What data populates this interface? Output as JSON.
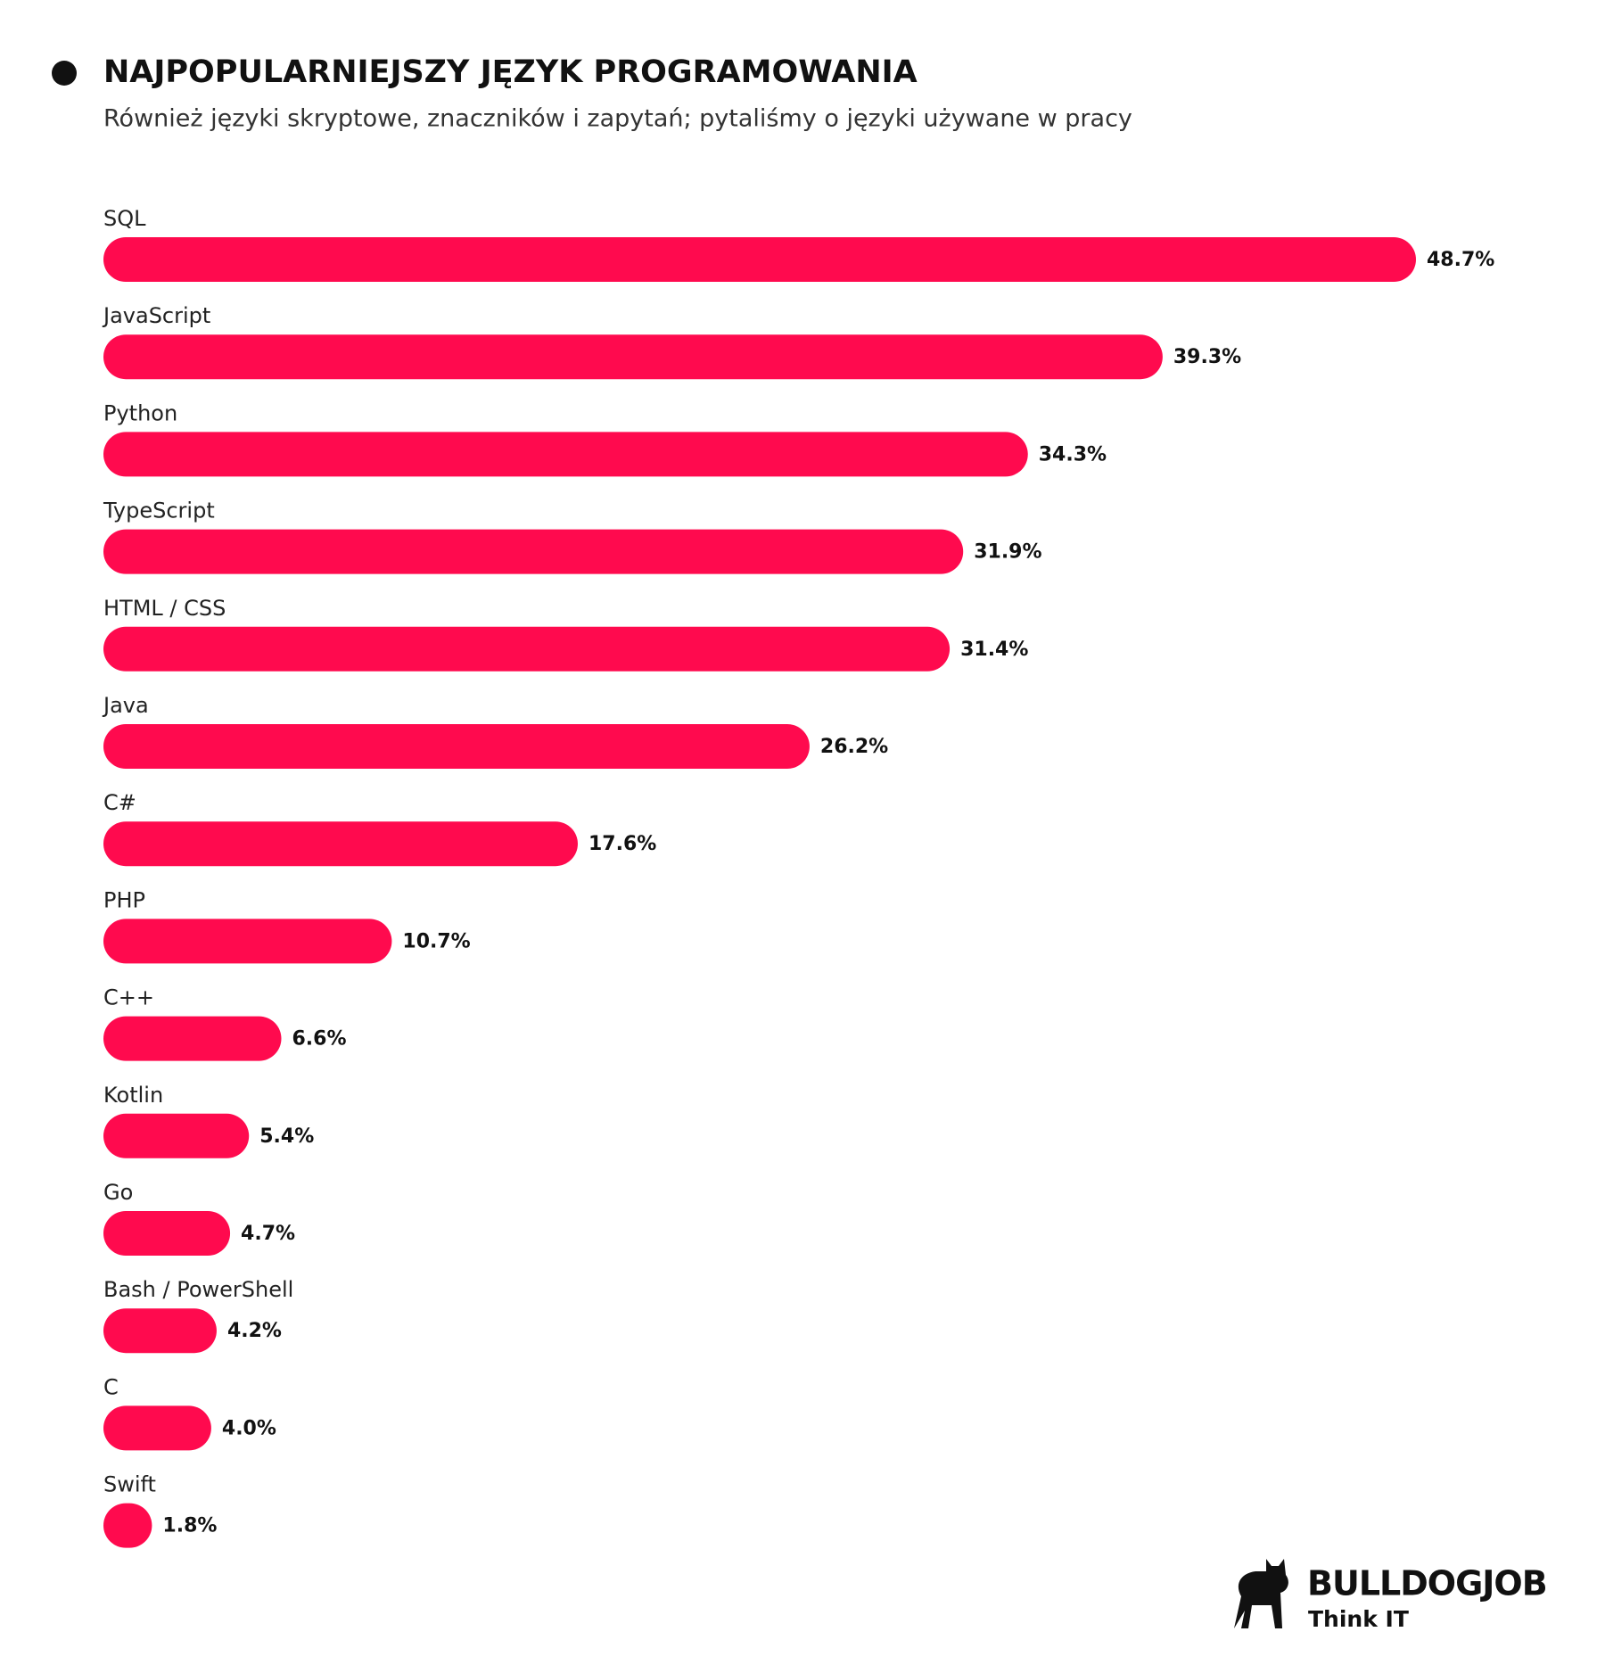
{
  "chart_data": {
    "type": "bar",
    "orientation": "horizontal",
    "title": "NAJPOPULARNIEJSZY JĘZYK PROGRAMOWANIA",
    "subtitle": "Również języki skryptowe, znaczników i zapytań; pytaliśmy o języki używane w pracy",
    "categories": [
      "SQL",
      "JavaScript",
      "Python",
      "TypeScript",
      "HTML / CSS",
      "Java",
      "C#",
      "PHP",
      "C++",
      "Kotlin",
      "Go",
      "Bash / PowerShell",
      "C",
      "Swift"
    ],
    "values": [
      48.7,
      39.3,
      34.3,
      31.9,
      31.4,
      26.2,
      17.6,
      10.7,
      6.6,
      5.4,
      4.7,
      4.2,
      4.0,
      1.8
    ],
    "value_labels": [
      "48.7%",
      "39.3%",
      "34.3%",
      "31.9%",
      "31.4%",
      "26.2%",
      "17.6%",
      "10.7%",
      "6.6%",
      "5.4%",
      "4.7%",
      "4.2%",
      "4.0%",
      "1.8%"
    ],
    "color": "#ff0a4e"
  },
  "logo": {
    "name": "BULLDOGJOB",
    "tagline": "Think IT"
  }
}
